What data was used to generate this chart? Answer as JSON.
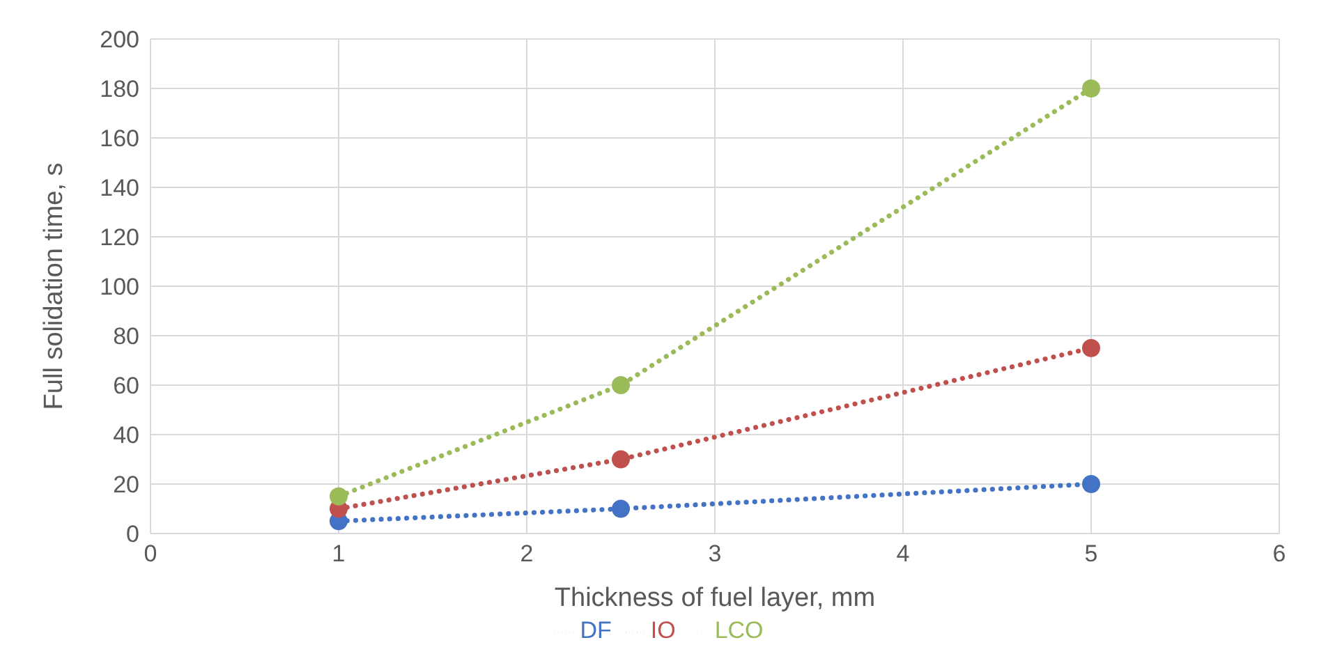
{
  "chart_data": {
    "type": "line",
    "xlabel": "Thickness of fuel layer, mm",
    "ylabel": "Full solidation time, s",
    "x": [
      1,
      2.5,
      5
    ],
    "series": [
      {
        "name": "DF",
        "color": "#4472c4",
        "values": [
          5,
          10,
          20
        ]
      },
      {
        "name": "IO",
        "color": "#c0504d",
        "values": [
          10,
          30,
          75
        ]
      },
      {
        "name": "LCO",
        "color": "#9bbb59",
        "values": [
          15,
          60,
          180
        ]
      }
    ],
    "xlim": [
      0,
      6
    ],
    "xticks": [
      0,
      1,
      2,
      3,
      4,
      5,
      6
    ],
    "ylim": [
      0,
      200
    ],
    "yticks": [
      0,
      20,
      40,
      60,
      80,
      100,
      120,
      140,
      160,
      180,
      200
    ],
    "grid": true,
    "legend": "bottom",
    "marker": "circle",
    "line_style": "dotted"
  }
}
